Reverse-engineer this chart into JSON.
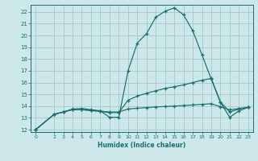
{
  "xlabel": "Humidex (Indice chaleur)",
  "bg_color": "#cce8e8",
  "grid_color": "#aacccc",
  "line_color": "#1a6e6e",
  "xlim": [
    -0.5,
    23.5
  ],
  "ylim": [
    11.8,
    22.6
  ],
  "xticks": [
    0,
    2,
    3,
    4,
    5,
    6,
    7,
    8,
    9,
    10,
    11,
    12,
    13,
    14,
    15,
    16,
    17,
    18,
    19,
    20,
    21,
    22,
    23
  ],
  "yticks": [
    12,
    13,
    14,
    15,
    16,
    17,
    18,
    19,
    20,
    21,
    22
  ],
  "line1_x": [
    0,
    2,
    3,
    4,
    5,
    6,
    7,
    8,
    9,
    10,
    11,
    12,
    13,
    14,
    15,
    16,
    17,
    18,
    19,
    20,
    21,
    22,
    23
  ],
  "line1_y": [
    12.0,
    13.3,
    13.5,
    13.75,
    13.8,
    13.7,
    13.6,
    13.05,
    13.05,
    17.0,
    19.35,
    20.15,
    21.55,
    22.05,
    22.35,
    21.75,
    20.4,
    18.35,
    16.3,
    14.3,
    13.05,
    13.6,
    13.9
  ],
  "line2_x": [
    0,
    2,
    3,
    4,
    5,
    6,
    7,
    8,
    9,
    10,
    11,
    12,
    13,
    14,
    15,
    16,
    17,
    18,
    19,
    20,
    21,
    22,
    23
  ],
  "line2_y": [
    12.0,
    13.3,
    13.5,
    13.7,
    13.7,
    13.62,
    13.55,
    13.45,
    13.45,
    14.5,
    14.85,
    15.1,
    15.3,
    15.5,
    15.65,
    15.8,
    16.0,
    16.2,
    16.35,
    14.35,
    13.5,
    13.75,
    13.9
  ],
  "line3_x": [
    0,
    2,
    3,
    4,
    5,
    6,
    7,
    8,
    9,
    10,
    11,
    12,
    13,
    14,
    15,
    16,
    17,
    18,
    19,
    20,
    21,
    22,
    23
  ],
  "line3_y": [
    12.0,
    13.3,
    13.5,
    13.7,
    13.7,
    13.63,
    13.58,
    13.5,
    13.5,
    13.75,
    13.82,
    13.88,
    13.93,
    13.97,
    14.0,
    14.05,
    14.1,
    14.15,
    14.2,
    13.95,
    13.68,
    13.8,
    13.9
  ]
}
